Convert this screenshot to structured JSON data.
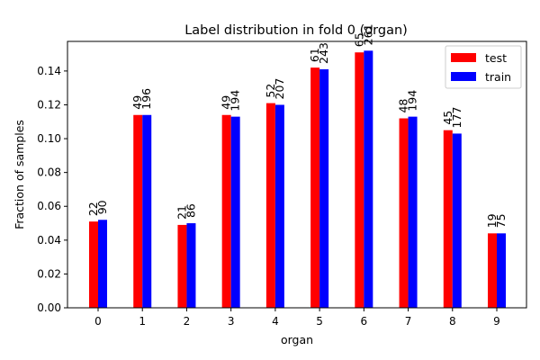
{
  "chart_data": {
    "type": "bar",
    "title": "Label distribution in fold 0 (organ)",
    "xlabel": "organ",
    "ylabel": "Fraction of samples",
    "categories": [
      "0",
      "1",
      "2",
      "3",
      "4",
      "5",
      "6",
      "7",
      "8",
      "9"
    ],
    "ylim": [
      0,
      0.1575
    ],
    "yticks": [
      "0.00",
      "0.02",
      "0.04",
      "0.06",
      "0.08",
      "0.10",
      "0.12",
      "0.14"
    ],
    "grid": false,
    "legend_position": "upper right",
    "series": [
      {
        "name": "test",
        "color": "#ff0000",
        "values": [
          0.051,
          0.114,
          0.049,
          0.114,
          0.121,
          0.142,
          0.151,
          0.112,
          0.105,
          0.044
        ],
        "labels": [
          "22",
          "49",
          "21",
          "49",
          "52",
          "61",
          "65",
          "48",
          "45",
          "19"
        ]
      },
      {
        "name": "train",
        "color": "#0000ff",
        "values": [
          0.052,
          0.114,
          0.05,
          0.113,
          0.12,
          0.141,
          0.152,
          0.113,
          0.103,
          0.044
        ],
        "labels": [
          "90",
          "196",
          "86",
          "194",
          "207",
          "243",
          "261",
          "194",
          "177",
          "75"
        ]
      }
    ]
  }
}
